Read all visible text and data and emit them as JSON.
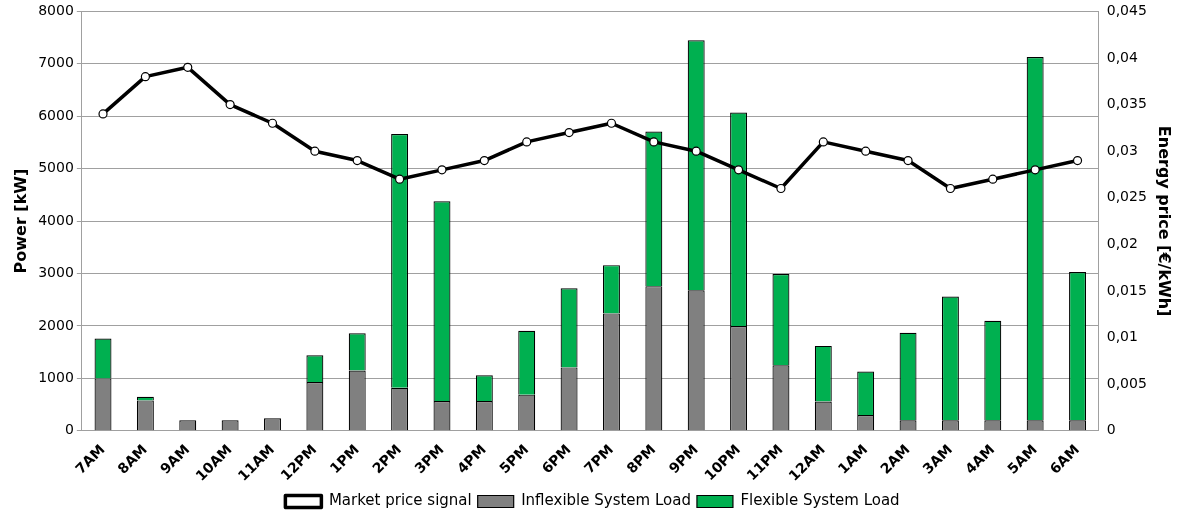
{
  "chart_data": {
    "type": "bar",
    "stacked": true,
    "categories": [
      "7AM",
      "8AM",
      "9AM",
      "10AM",
      "11AM",
      "12PM",
      "1PM",
      "2PM",
      "3PM",
      "4PM",
      "5PM",
      "6PM",
      "7PM",
      "8PM",
      "9PM",
      "10PM",
      "11PM",
      "12AM",
      "1AM",
      "2AM",
      "3AM",
      "4AM",
      "5AM",
      "6AM"
    ],
    "ylabel": "Power [kW]",
    "y2label": "Energy price [€/kWh]",
    "ylim": [
      0,
      8000
    ],
    "yticks": [
      0,
      1000,
      2000,
      3000,
      4000,
      5000,
      6000,
      7000,
      8000
    ],
    "y2lim": [
      0,
      0.045
    ],
    "y2ticks": [
      {
        "value": 0,
        "label": "0"
      },
      {
        "value": 0.005,
        "label": "0,005"
      },
      {
        "value": 0.01,
        "label": "0,01"
      },
      {
        "value": 0.015,
        "label": "0,015"
      },
      {
        "value": 0.02,
        "label": "0,02"
      },
      {
        "value": 0.025,
        "label": "0,025"
      },
      {
        "value": 0.03,
        "label": "0,03"
      },
      {
        "value": 0.035,
        "label": "0,035"
      },
      {
        "value": 0.04,
        "label": "0,04"
      },
      {
        "value": 0.045,
        "label": "0,045"
      }
    ],
    "grid": "y",
    "legend": "bottom",
    "marker": "circle",
    "series": [
      {
        "name": "Inflexible System Load",
        "color": "#808080",
        "values": [
          1000,
          580,
          200,
          200,
          240,
          930,
          1150,
          820,
          570,
          570,
          690,
          1210,
          2240,
          2760,
          2680,
          2000,
          1250,
          560,
          300,
          200,
          200,
          200,
          200,
          200
        ]
      },
      {
        "name": "Flexible System Load",
        "color": "#00b050",
        "values": [
          760,
          70,
          0,
          0,
          0,
          510,
          710,
          4840,
          3810,
          490,
          1220,
          1510,
          920,
          2950,
          4770,
          4070,
          1740,
          1060,
          830,
          1670,
          2360,
          1900,
          6930,
          2830
        ]
      },
      {
        "name": "Market price signal",
        "type": "line",
        "axis": "y2",
        "color": "#000000",
        "values": [
          0.034,
          0.038,
          0.039,
          0.035,
          0.033,
          0.03,
          0.029,
          0.027,
          0.028,
          0.029,
          0.031,
          0.032,
          0.033,
          0.031,
          0.03,
          0.028,
          0.026,
          0.031,
          0.03,
          0.029,
          0.026,
          0.027,
          0.028,
          0.029
        ]
      }
    ]
  }
}
